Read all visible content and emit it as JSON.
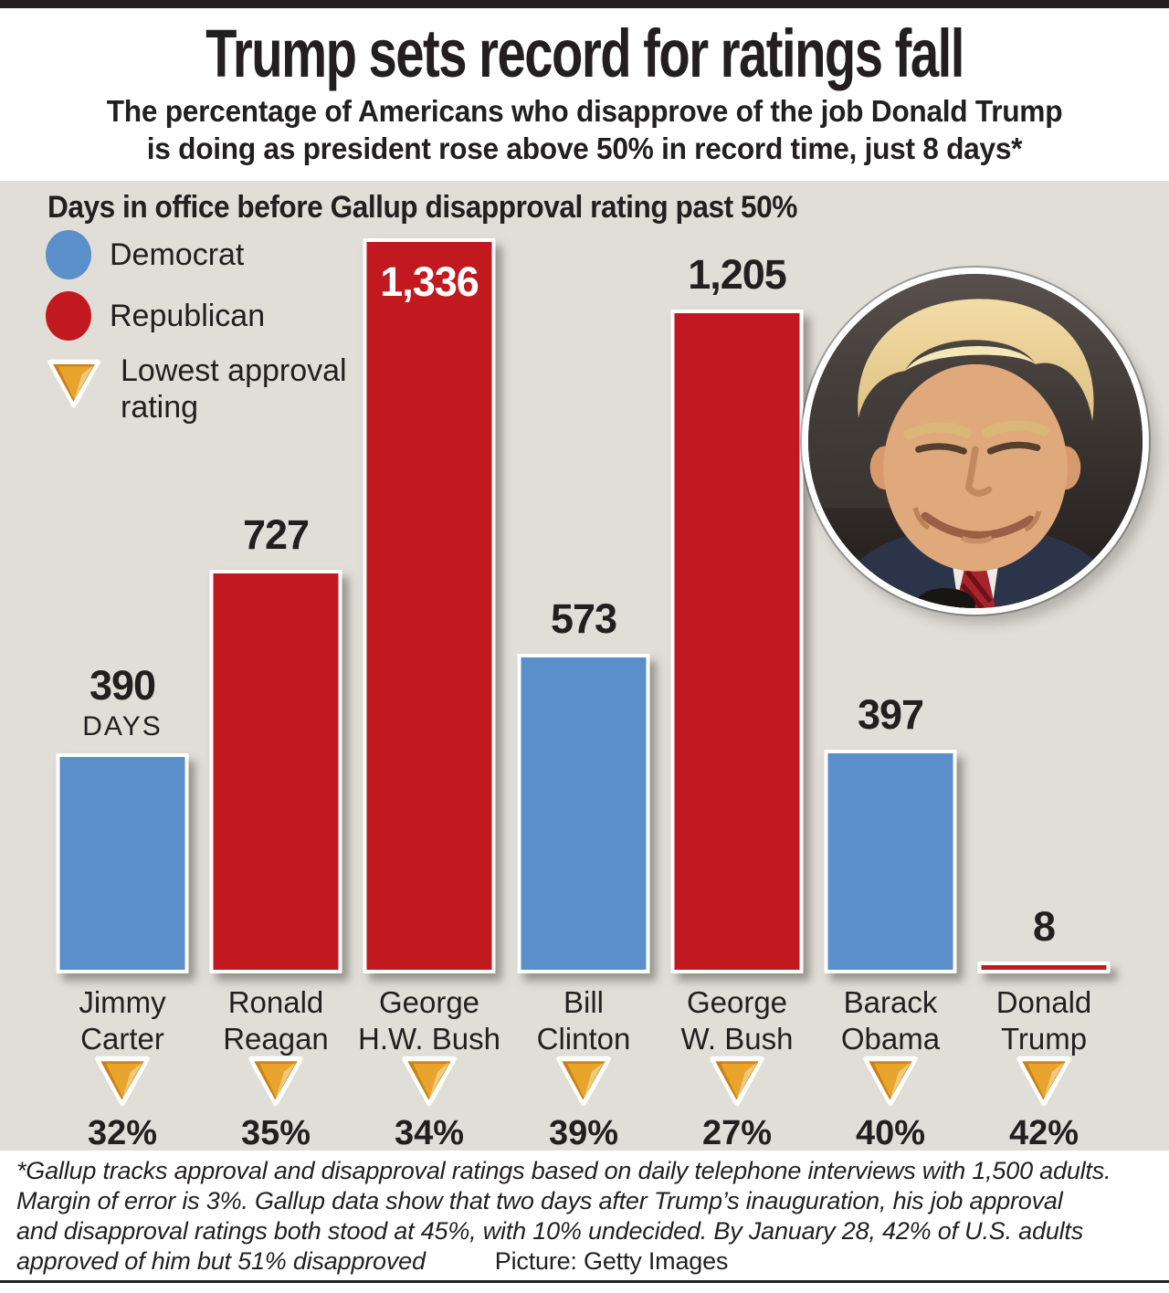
{
  "colors": {
    "ink": "#231f20",
    "panel_background": "#e0ded6",
    "democrat": "#5b8fc9",
    "republican": "#c1191f",
    "triangle_orange": "#e09a24",
    "white": "#ffffff"
  },
  "header": {
    "title": "Trump sets record for ratings fall",
    "subtitle_line1": "The percentage of Americans who disapprove of the job Donald Trump",
    "subtitle_line2": "is doing as president rose above 50% in record time, just 8 days*"
  },
  "chart": {
    "title": "Days in office before Gallup disapproval rating past 50%",
    "legend": {
      "democrat_label": "Democrat",
      "republican_label": "Republican",
      "lowest_line1": "Lowest approval",
      "lowest_line2": "rating"
    }
  },
  "presidents": [
    {
      "name1": "Jimmy",
      "name2": "Carter",
      "party": "D",
      "days": 390,
      "value_label": "390",
      "days_suffix": "DAYS",
      "label_inside": false,
      "lowest_label": "32%"
    },
    {
      "name1": "Ronald",
      "name2": "Reagan",
      "party": "R",
      "days": 727,
      "value_label": "727",
      "days_suffix": "",
      "label_inside": false,
      "lowest_label": "35%"
    },
    {
      "name1": "George",
      "name2": "H.W. Bush",
      "party": "R",
      "days": 1336,
      "value_label": "1,336",
      "days_suffix": "",
      "label_inside": true,
      "lowest_label": "34%"
    },
    {
      "name1": "Bill",
      "name2": "Clinton",
      "party": "D",
      "days": 573,
      "value_label": "573",
      "days_suffix": "",
      "label_inside": false,
      "lowest_label": "39%"
    },
    {
      "name1": "George",
      "name2": "W. Bush",
      "party": "R",
      "days": 1205,
      "value_label": "1,205",
      "days_suffix": "",
      "label_inside": false,
      "lowest_label": "27%"
    },
    {
      "name1": "Barack",
      "name2": "Obama",
      "party": "D",
      "days": 397,
      "value_label": "397",
      "days_suffix": "",
      "label_inside": false,
      "lowest_label": "40%"
    },
    {
      "name1": "Donald",
      "name2": "Trump",
      "party": "R",
      "days": 8,
      "value_label": "8",
      "days_suffix": "",
      "label_inside": false,
      "lowest_label": "42%"
    }
  ],
  "chart_data": {
    "type": "bar",
    "title": "Days in office before Gallup disapproval rating past 50%",
    "categories": [
      "Jimmy Carter",
      "Ronald Reagan",
      "George H.W. Bush",
      "Bill Clinton",
      "George W. Bush",
      "Barack Obama",
      "Donald Trump"
    ],
    "series": [
      {
        "name": "Days in office before Gallup disapproval rating past 50%",
        "unit": "days",
        "values": [
          390,
          727,
          1336,
          573,
          1205,
          397,
          8
        ]
      },
      {
        "name": "Lowest approval rating",
        "unit": "%",
        "values": [
          32,
          35,
          34,
          39,
          27,
          40,
          42
        ]
      }
    ],
    "party_by_category": [
      "Democrat",
      "Republican",
      "Republican",
      "Democrat",
      "Republican",
      "Democrat",
      "Republican"
    ],
    "bar_color_by_party": {
      "Democrat": "#5b8fc9",
      "Republican": "#c1191f"
    },
    "ylim": [
      0,
      1400
    ],
    "grid": false,
    "legend_position": "top-left",
    "value_labels_shown": true
  },
  "footnote": {
    "lines": [
      "*Gallup tracks approval and disapproval ratings based on daily telephone interviews with 1,500 adults.",
      "Margin of error is 3%. Gallup data show that two days after Trump’s inauguration, his job approval",
      "and disapproval ratings both stood at 45%, with 10% undecided. By January 28, 42% of U.S. adults",
      "approved of him but 51% disapproved"
    ],
    "credit": "Picture: Getty Images"
  }
}
